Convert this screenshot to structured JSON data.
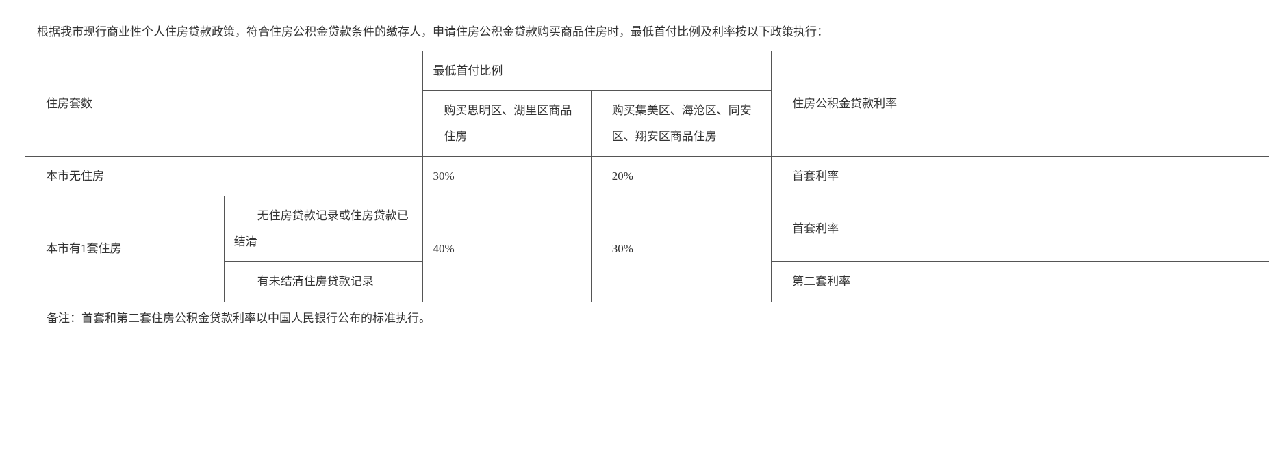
{
  "intro": "根据我市现行商业性个人住房贷款政策，符合住房公积金贷款条件的缴存人，申请住房公积金贷款购买商品住房时，最低首付比例及利率按以下政策执行：",
  "table": {
    "header": {
      "col_house_count": "住房套数",
      "col_min_ratio_group": "最低首付比例",
      "col_region_a": "购买思明区、湖里区商品住房",
      "col_region_b": "购买集美区、海沧区、同安区、翔安区商品住房",
      "col_rate": "住房公积金贷款利率"
    },
    "rows": [
      {
        "house": "本市无住房",
        "ratio_a": "30%",
        "ratio_b": "20%",
        "rate": "首套利率"
      },
      {
        "house": "本市有1套住房",
        "sub1": "无住房贷款记录或住房贷款已结清",
        "sub2": "有未结清住房贷款记录",
        "ratio_a": "40%",
        "ratio_b": "30%",
        "rate1": "首套利率",
        "rate2": "第二套利率"
      }
    ]
  },
  "note": "备注：首套和第二套住房公积金贷款利率以中国人民银行公布的标准执行。",
  "colors": {
    "text": "#333333",
    "border": "#555555",
    "background": "#ffffff"
  }
}
